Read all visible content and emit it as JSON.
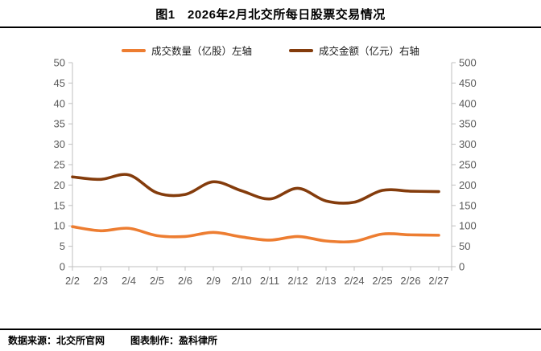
{
  "title": "图1　2026年2月北交所每日股票交易情况",
  "legend": {
    "volume_label": "成交数量（亿股）左轴",
    "amount_label": "成交金额（亿元）右轴"
  },
  "footer": {
    "source": "数据来源：北交所官网",
    "maker": "图表制作：盈科律所"
  },
  "colors": {
    "volume_line": "#ED7D31",
    "amount_line": "#843C0C",
    "axis_line": "#BFBFBF",
    "axis_text": "#595959",
    "divider": "#000000"
  },
  "chart_data": {
    "type": "line",
    "title": "图1　2026年2月北交所每日股票交易情况",
    "categories": [
      "2/2",
      "2/3",
      "2/4",
      "2/5",
      "2/6",
      "2/9",
      "2/10",
      "2/11",
      "2/12",
      "2/13",
      "2/24",
      "2/25",
      "2/26",
      "2/27"
    ],
    "series": [
      {
        "name": "成交数量（亿股）左轴",
        "axis": "left",
        "color": "#ED7D31",
        "values": [
          9.8,
          8.8,
          9.4,
          7.6,
          7.4,
          8.4,
          7.3,
          6.5,
          7.4,
          6.3,
          6.2,
          8.0,
          7.8,
          7.7
        ]
      },
      {
        "name": "成交金额（亿元）右轴",
        "axis": "right",
        "color": "#843C0C",
        "values": [
          220,
          214,
          225,
          181,
          177,
          208,
          186,
          166,
          192,
          161,
          158,
          187,
          185,
          184
        ]
      }
    ],
    "left_axis": {
      "min": 0,
      "max": 50,
      "step": 5,
      "ticks": [
        "0",
        "5",
        "10",
        "15",
        "20",
        "25",
        "30",
        "35",
        "40",
        "45",
        "50"
      ]
    },
    "right_axis": {
      "min": 0,
      "max": 500,
      "step": 50,
      "ticks": [
        "0",
        "50",
        "100",
        "150",
        "200",
        "250",
        "300",
        "350",
        "400",
        "450",
        "500"
      ]
    },
    "grid": false,
    "smooth": true,
    "legend_position": "top"
  }
}
